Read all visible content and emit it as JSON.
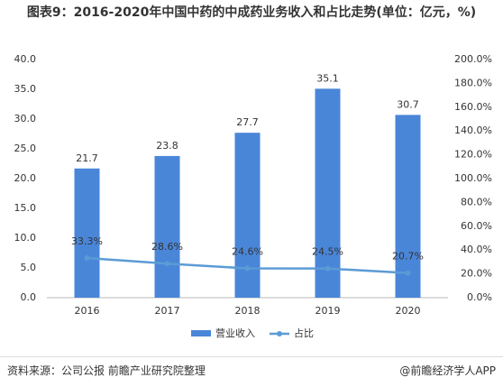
{
  "chart_data": {
    "type": "bar",
    "title": "图表9：2016-2020年中国中药的中成药业务收入和占比走势(单位：亿元，%)",
    "categories": [
      "2016",
      "2017",
      "2018",
      "2019",
      "2020"
    ],
    "series": [
      {
        "name": "营业收入",
        "type": "bar",
        "color": "#4a86d8",
        "values": [
          21.7,
          23.8,
          27.7,
          35.1,
          30.7
        ]
      },
      {
        "name": "占比",
        "type": "line",
        "axis": "y2",
        "color": "#5b9bd5",
        "values": [
          33.3,
          28.6,
          24.6,
          24.5,
          20.7
        ],
        "value_labels": [
          "33.3%",
          "28.6%",
          "24.6%",
          "24.5%",
          "20.7%"
        ]
      }
    ],
    "ylim": [
      0,
      40
    ],
    "yticks": [
      {
        "value": 0,
        "label": "0.0"
      },
      {
        "value": 5,
        "label": "5.0"
      },
      {
        "value": 10,
        "label": "10.0"
      },
      {
        "value": 15,
        "label": "15.0"
      },
      {
        "value": 20,
        "label": "20.0"
      },
      {
        "value": 25,
        "label": "25.0"
      },
      {
        "value": 30,
        "label": "30.0"
      },
      {
        "value": 35,
        "label": "35.0"
      },
      {
        "value": 40,
        "label": "40.0"
      }
    ],
    "y2lim": [
      0,
      200
    ],
    "y2ticks": [
      {
        "value": 0,
        "label": "0.0%"
      },
      {
        "value": 20,
        "label": "20.0%"
      },
      {
        "value": 40,
        "label": "40.0%"
      },
      {
        "value": 60,
        "label": "60.0%"
      },
      {
        "value": 80,
        "label": "80.0%"
      },
      {
        "value": 100,
        "label": "100.0%"
      },
      {
        "value": 120,
        "label": "120.0%"
      },
      {
        "value": 140,
        "label": "140.0%"
      },
      {
        "value": 160,
        "label": "160.0%"
      },
      {
        "value": 180,
        "label": "180.0%"
      },
      {
        "value": 200,
        "label": "200.0%"
      }
    ],
    "grid": false,
    "legend": "bottom",
    "source": "资料来源：公司公报 前瞻产业研究院整理",
    "credit": "@前瞻经济学人APP"
  }
}
